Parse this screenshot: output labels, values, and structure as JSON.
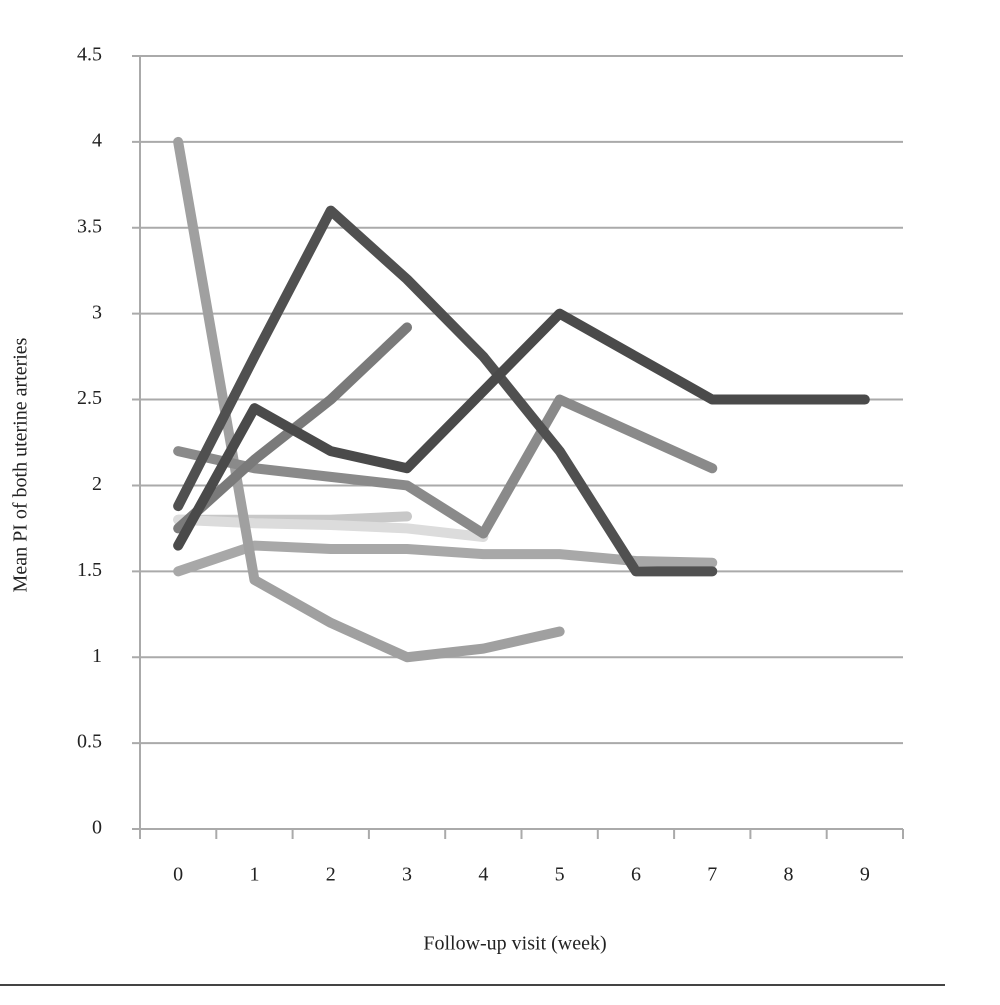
{
  "chart_data": {
    "type": "line",
    "y_label": "Mean PI  of both uterine arteries",
    "x_label": "Follow-up visit (week)",
    "categories": [
      "0",
      "1",
      "2",
      "3",
      "4",
      "5",
      "6",
      "7",
      "8",
      "9"
    ],
    "ylim": [
      0,
      4.5
    ],
    "yticks": [
      0,
      0.5,
      1,
      1.5,
      2,
      2.5,
      3,
      3.5,
      4,
      4.5
    ],
    "grid": true,
    "series": [
      {
        "color": "#c8c8c8",
        "values": [
          1.8,
          1.8,
          1.8,
          1.82,
          null,
          null,
          null,
          null,
          null,
          null
        ]
      },
      {
        "color": "#dcdcdc",
        "values": [
          1.8,
          1.78,
          1.77,
          1.75,
          1.7,
          null,
          null,
          null,
          null,
          null
        ]
      },
      {
        "color": "#a8a8a8",
        "values": [
          1.5,
          1.65,
          1.63,
          1.63,
          1.6,
          1.6,
          1.56,
          1.55,
          null,
          null
        ]
      },
      {
        "color": "#a0a0a0",
        "values": [
          4.0,
          1.45,
          1.2,
          1.0,
          1.05,
          1.15,
          null,
          null,
          null,
          null
        ]
      },
      {
        "color": "#8a8a8a",
        "values": [
          2.2,
          2.1,
          2.05,
          2.0,
          1.72,
          2.5,
          2.3,
          2.1,
          null,
          null
        ]
      },
      {
        "color": "#7a7a7a",
        "values": [
          1.75,
          2.15,
          2.5,
          2.92,
          null,
          null,
          null,
          null,
          null,
          null
        ]
      },
      {
        "color": "#505050",
        "values": [
          1.88,
          2.75,
          3.6,
          3.2,
          2.75,
          2.2,
          1.5,
          1.5,
          null,
          null
        ]
      },
      {
        "color": "#4a4a4a",
        "values": [
          1.65,
          2.45,
          2.2,
          2.1,
          2.55,
          3.0,
          2.75,
          2.5,
          2.5,
          2.5
        ]
      }
    ]
  }
}
